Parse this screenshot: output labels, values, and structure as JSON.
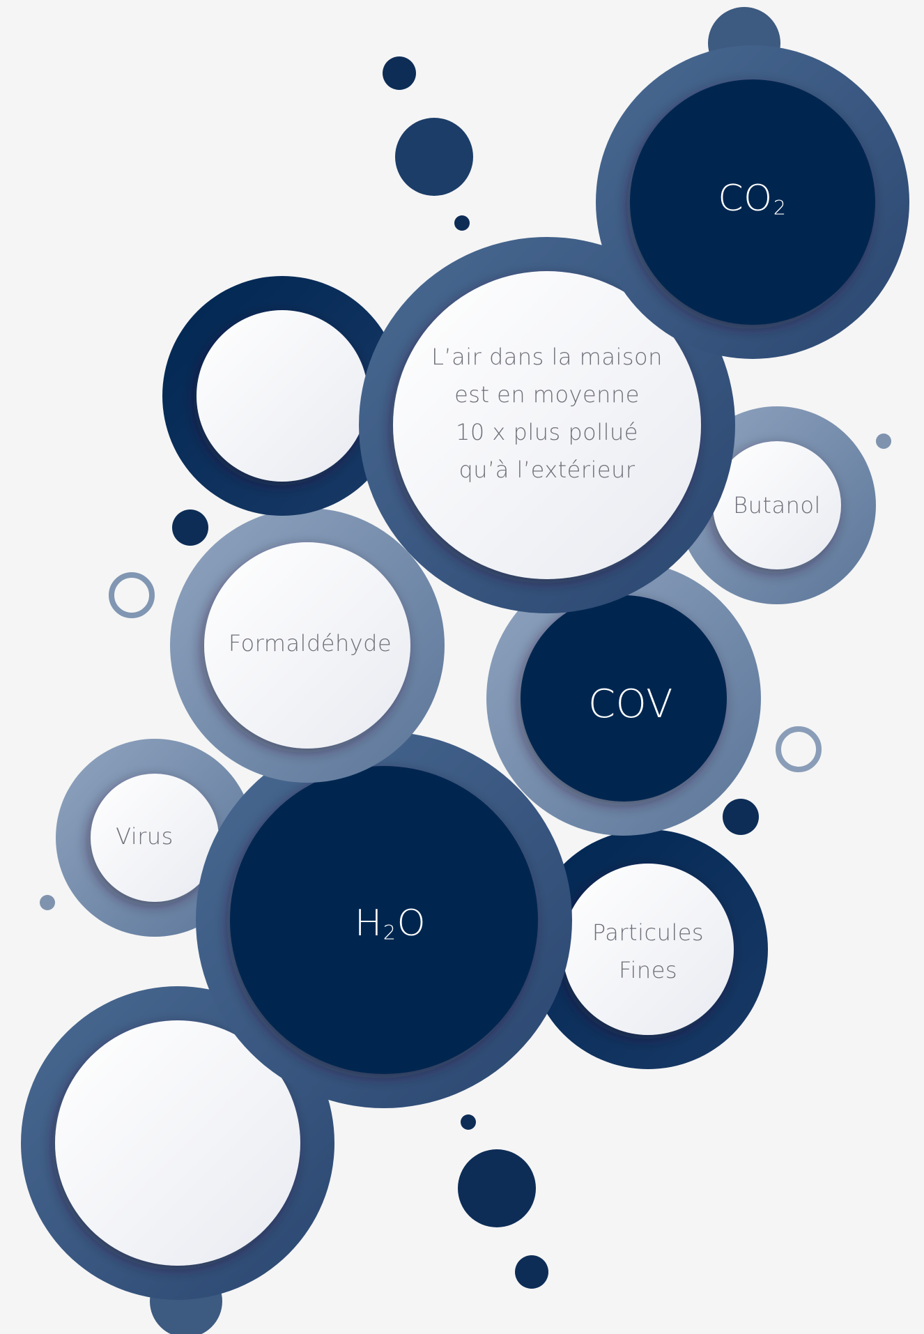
{
  "labels": {
    "headline_line1": "L’air dans la maison",
    "headline_line2": "est en moyenne",
    "headline_line3": "10 x plus pollué",
    "headline_line4": "qu’à l’extérieur",
    "co2_main": "CO",
    "co2_sub": "2",
    "butanol": "Butanol",
    "formaldehyde": "Formaldéhyde",
    "cov": "COV",
    "virus": "Virus",
    "h2o_h": "H",
    "h2o_sub": "2",
    "h2o_o": "O",
    "particules_line1": "Particules",
    "particules_line2": "Fines"
  },
  "colors": {
    "background": "#f5f5f5",
    "navy": "#00264f",
    "steel_blue": "#3d5a80",
    "light_steel": "#8096b2",
    "white_disc": "#f4f5f8",
    "text_grey": "#6e6e78"
  }
}
